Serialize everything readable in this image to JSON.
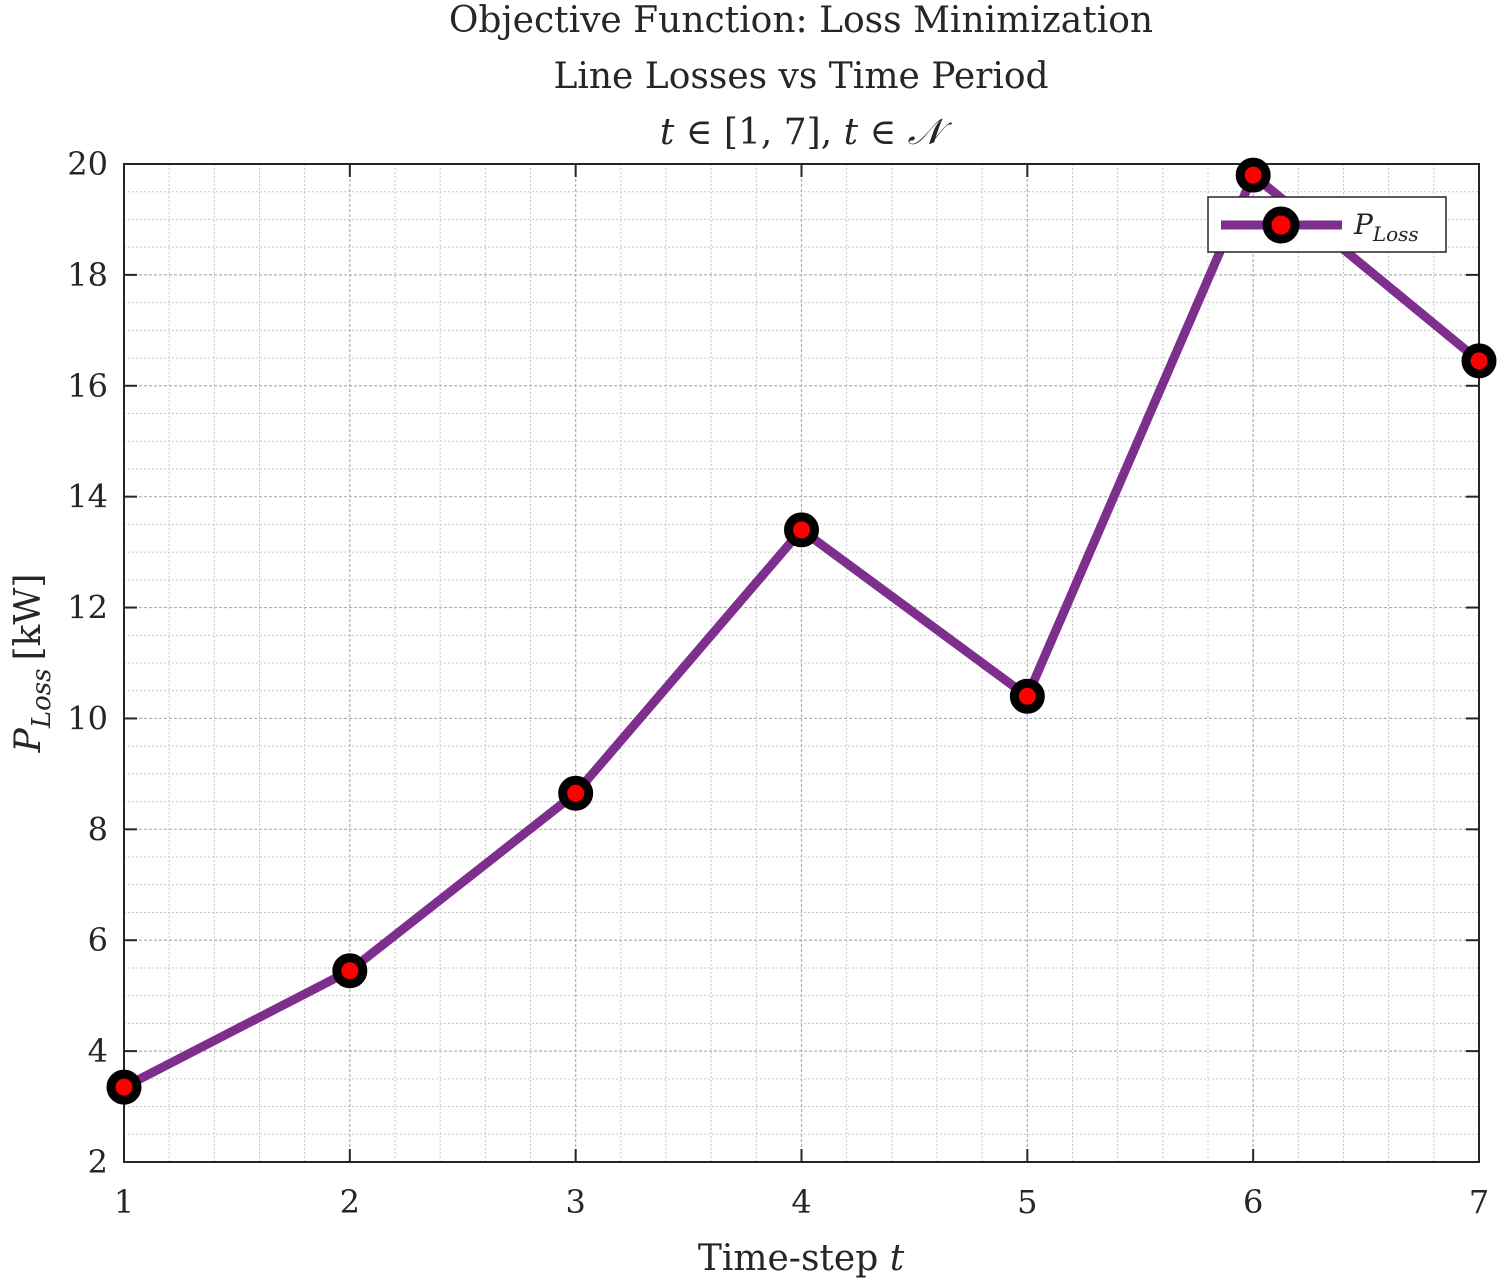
{
  "chart_data": {
    "type": "line",
    "title_lines": [
      "Objective Function: Loss Minimization",
      "Line Losses vs Time Period"
    ],
    "subtitle_math": {
      "var": "t",
      "in": "∈",
      "interval": "[1, 7],",
      "set": "𝒩"
    },
    "xlabel": {
      "text": "Time-step ",
      "var": "t"
    },
    "ylabel": {
      "main": "P",
      "sub": "Loss",
      "unit": "[kW]"
    },
    "x": [
      1,
      2,
      3,
      4,
      5,
      6,
      7
    ],
    "xlim": [
      1,
      7
    ],
    "ylim": [
      2,
      20
    ],
    "xticks": [
      1,
      2,
      3,
      4,
      5,
      6,
      7
    ],
    "yticks": [
      2,
      4,
      6,
      8,
      10,
      12,
      14,
      16,
      18,
      20
    ],
    "grid": true,
    "minor_grid": true,
    "legend_placement": "top-right",
    "series": [
      {
        "name": {
          "main": "P",
          "sub": "Loss"
        },
        "values": [
          3.35,
          5.45,
          8.65,
          13.4,
          10.4,
          19.8,
          16.45
        ],
        "line_color": "#7E2F8E",
        "marker_edge_color": "#000000",
        "marker_face_color": "#FF0000"
      }
    ]
  }
}
